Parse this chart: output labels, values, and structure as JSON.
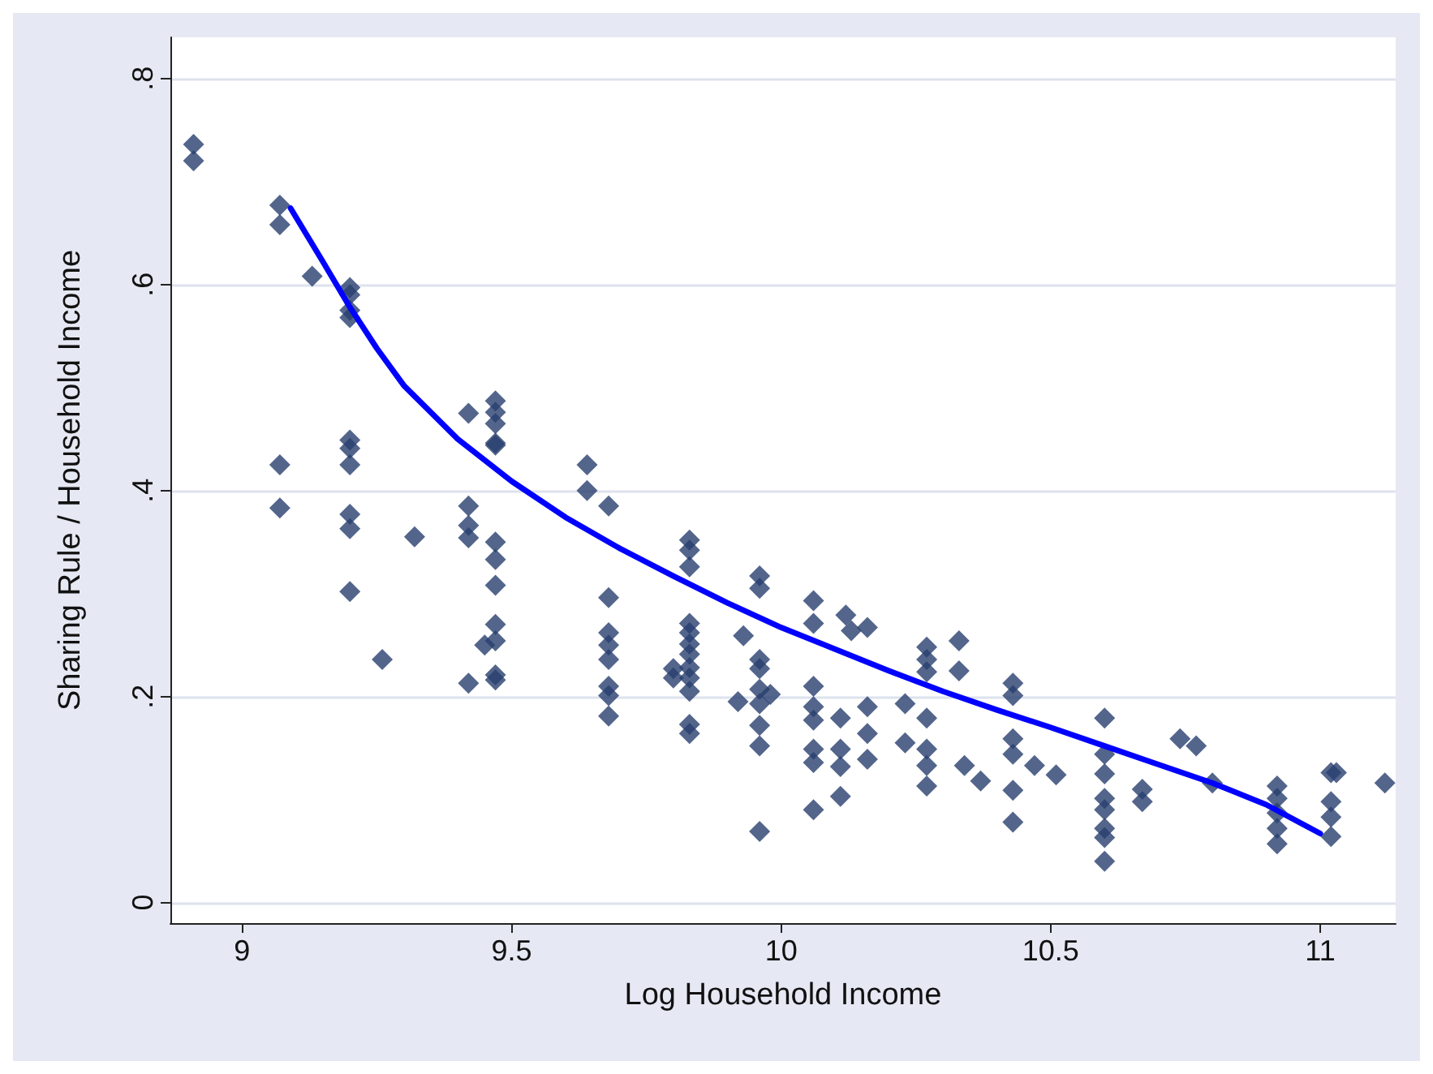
{
  "chart_data": {
    "type": "scatter",
    "xlabel": "Log Household Income",
    "ylabel": "Sharing Rule / Household Income",
    "xlim": [
      8.867,
      11.14
    ],
    "ylim": [
      -0.02,
      0.84
    ],
    "xticks": [
      9,
      9.5,
      10,
      10.5,
      11
    ],
    "yticks": [
      0,
      {
        "value": 0.2,
        "label": ".2"
      },
      {
        "value": 0.4,
        "label": ".4"
      },
      {
        "value": 0.6,
        "label": ".6"
      },
      {
        "value": 0.8,
        "label": ".8"
      }
    ],
    "grid": "y",
    "marker": "diamond",
    "series": [
      {
        "color": "#283f6e",
        "x": [
          8.91,
          8.91,
          9.07,
          9.07,
          9.07,
          9.07,
          9.13,
          9.2,
          9.2,
          9.2,
          9.2,
          9.2,
          9.2,
          9.2,
          9.2,
          9.2,
          9.2,
          9.26,
          9.32,
          9.42,
          9.42,
          9.42,
          9.42,
          9.42,
          9.45,
          9.47,
          9.47,
          9.47,
          9.47,
          9.47,
          9.47,
          9.47,
          9.47,
          9.47,
          9.47,
          9.47,
          9.47,
          9.64,
          9.64,
          9.68,
          9.68,
          9.68,
          9.68,
          9.68,
          9.68,
          9.68,
          9.68,
          9.8,
          9.8,
          9.83,
          9.83,
          9.83,
          9.83,
          9.83,
          9.83,
          9.83,
          9.83,
          9.83,
          9.83,
          9.83,
          9.83,
          9.93,
          9.92,
          9.96,
          9.96,
          9.96,
          9.96,
          9.96,
          9.96,
          9.96,
          9.96,
          9.96,
          9.98,
          10.06,
          10.06,
          10.06,
          10.06,
          10.06,
          10.06,
          10.06,
          10.06,
          10.12,
          10.11,
          10.11,
          10.11,
          10.11,
          10.13,
          10.16,
          10.16,
          10.16,
          10.16,
          10.23,
          10.23,
          10.27,
          10.27,
          10.27,
          10.27,
          10.27,
          10.27,
          10.27,
          10.33,
          10.33,
          10.34,
          10.37,
          10.43,
          10.43,
          10.43,
          10.43,
          10.43,
          10.43,
          10.47,
          10.51,
          10.6,
          10.6,
          10.6,
          10.6,
          10.6,
          10.6,
          10.6,
          10.6,
          10.67,
          10.67,
          10.74,
          10.77,
          10.8,
          10.92,
          10.92,
          10.92,
          10.92,
          10.92,
          11.02,
          11.03,
          11.02,
          11.02,
          11.02,
          11.12
        ],
        "values": [
          0.736,
          0.72,
          0.677,
          0.658,
          0.425,
          0.383,
          0.608,
          0.597,
          0.59,
          0.575,
          0.568,
          0.449,
          0.441,
          0.425,
          0.377,
          0.363,
          0.302,
          0.236,
          0.355,
          0.475,
          0.385,
          0.366,
          0.354,
          0.213,
          0.25,
          0.487,
          0.476,
          0.465,
          0.446,
          0.444,
          0.35,
          0.333,
          0.308,
          0.27,
          0.254,
          0.221,
          0.216,
          0.425,
          0.4,
          0.385,
          0.296,
          0.262,
          0.236,
          0.21,
          0.201,
          0.181,
          0.25,
          0.227,
          0.218,
          0.352,
          0.342,
          0.326,
          0.271,
          0.262,
          0.251,
          0.241,
          0.228,
          0.218,
          0.205,
          0.173,
          0.164,
          0.259,
          0.195,
          0.317,
          0.305,
          0.236,
          0.227,
          0.207,
          0.193,
          0.172,
          0.152,
          0.069,
          0.202,
          0.293,
          0.271,
          0.21,
          0.19,
          0.177,
          0.149,
          0.136,
          0.09,
          0.279,
          0.179,
          0.149,
          0.132,
          0.103,
          0.264,
          0.267,
          0.19,
          0.164,
          0.139,
          0.193,
          0.155,
          0.248,
          0.236,
          0.224,
          0.179,
          0.149,
          0.133,
          0.113,
          0.254,
          0.225,
          0.133,
          0.118,
          0.213,
          0.201,
          0.159,
          0.144,
          0.109,
          0.078,
          0.133,
          0.124,
          0.179,
          0.144,
          0.125,
          0.101,
          0.09,
          0.072,
          0.063,
          0.04,
          0.11,
          0.098,
          0.159,
          0.152,
          0.116,
          0.113,
          0.101,
          0.087,
          0.072,
          0.057,
          0.126,
          0.126,
          0.098,
          0.083,
          0.064,
          0.116
        ]
      },
      {
        "type": "line",
        "color": "#0000ff",
        "marker": "none",
        "line_style": "solid",
        "x": [
          9.09,
          9.15,
          9.2,
          9.25,
          9.3,
          9.4,
          9.5,
          9.6,
          9.7,
          9.8,
          9.9,
          10,
          10.1,
          10.2,
          10.3,
          10.4,
          10.5,
          10.6,
          10.7,
          10.8,
          10.9,
          11
        ],
        "values": [
          0.674,
          0.622,
          0.578,
          0.538,
          0.502,
          0.45,
          0.409,
          0.374,
          0.344,
          0.317,
          0.291,
          0.267,
          0.246,
          0.225,
          0.205,
          0.187,
          0.17,
          0.152,
          0.134,
          0.116,
          0.095,
          0.067
        ]
      }
    ]
  }
}
